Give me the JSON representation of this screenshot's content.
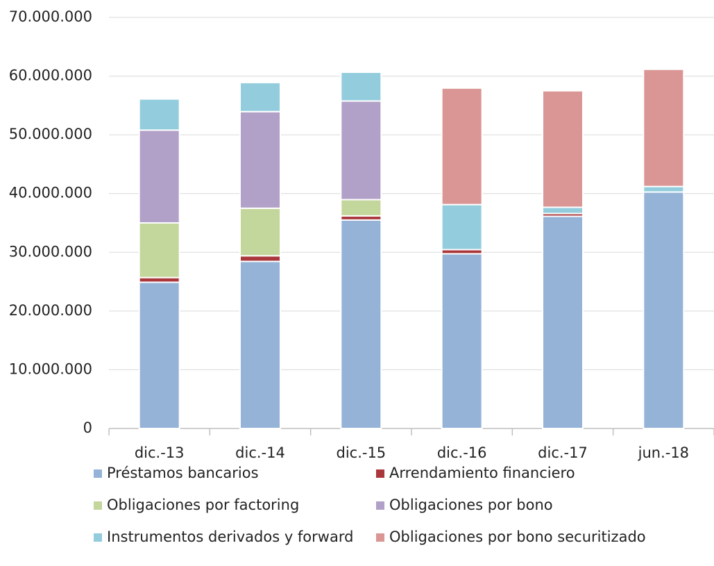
{
  "chart_data": {
    "type": "stacked_bar",
    "categories": [
      "dic.-13",
      "dic.-14",
      "dic.-15",
      "dic.-16",
      "dic.-17",
      "jun.-18"
    ],
    "series": [
      {
        "name": "Préstamos bancarios",
        "color": "#95b3d7",
        "values": [
          24900000,
          28450000,
          35500000,
          29750000,
          36130000,
          40260000
        ]
      },
      {
        "name": "Arrendamiento financiero",
        "color": "#a9373b",
        "values": [
          800000,
          950000,
          700000,
          700000,
          470000,
          0
        ]
      },
      {
        "name": "Obligaciones por factoring",
        "color": "#c3d69b",
        "values": [
          9300000,
          8100000,
          2760000,
          0,
          0,
          0
        ]
      },
      {
        "name": "Obligaciones por bono",
        "color": "#b1a0c7",
        "values": [
          15800000,
          16450000,
          16800000,
          0,
          0,
          0
        ]
      },
      {
        "name": "Instrumentos derivados y forward",
        "color": "#93cddd",
        "values": [
          5300000,
          4950000,
          4900000,
          7670000,
          1060000,
          940000
        ]
      },
      {
        "name": "Obligaciones por bono securitizado",
        "color": "#d99694",
        "values": [
          0,
          0,
          0,
          19840000,
          19840000,
          19960000
        ]
      }
    ],
    "ylim": [
      0,
      70000000
    ],
    "yticks": [
      0,
      {
        "value": 10000000,
        "label": "10.000.000"
      },
      {
        "value": 20000000,
        "label": "20.000.000"
      },
      {
        "value": 30000000,
        "label": "30.000.000"
      },
      {
        "value": 40000000,
        "label": "40.000.000"
      },
      {
        "value": 50000000,
        "label": "50.000.000"
      },
      {
        "value": 60000000,
        "label": "60.000.000"
      },
      {
        "value": 70000000,
        "label": "70.000.000"
      }
    ],
    "grid": true
  }
}
